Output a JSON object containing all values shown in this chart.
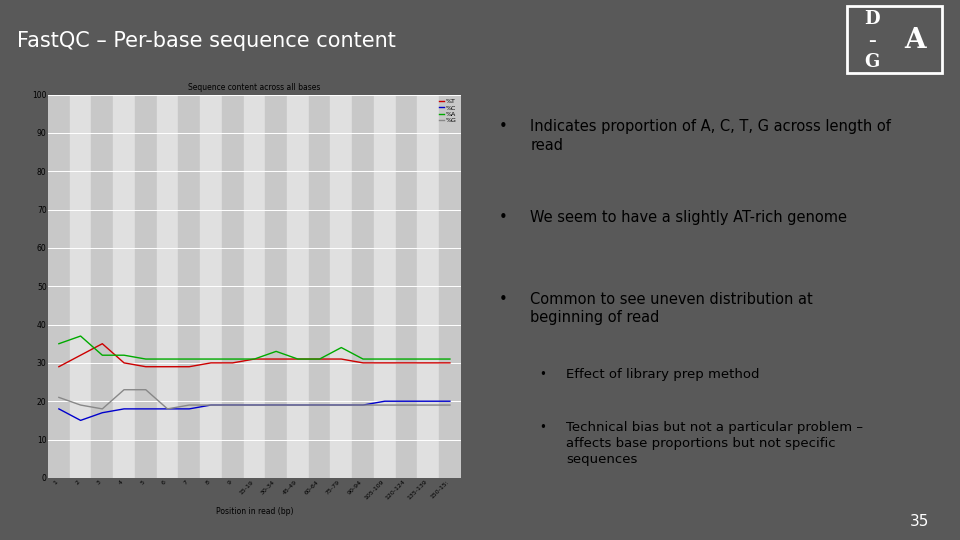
{
  "title": "FastQC – Per-base sequence content",
  "bg_color": "#595959",
  "slide_bg": "#ffffff",
  "header_color": "#595959",
  "header_text_color": "#ffffff",
  "footer_color": "#595959",
  "page_number": "35",
  "chart_title": "Sequence content across all bases",
  "x_labels": [
    "1",
    "2",
    "3",
    "4",
    "5",
    "6",
    "7",
    "8",
    "9",
    "15-19",
    "30-34",
    "45-49",
    "60-64",
    "75-79",
    "90-94",
    "105-109",
    "120-124",
    "135-139",
    "150-15:"
  ],
  "x_label": "Position in read (bp)",
  "ylim": [
    0,
    100
  ],
  "yticks": [
    0,
    10,
    20,
    30,
    40,
    50,
    60,
    70,
    80,
    90,
    100
  ],
  "T_color": "#cc0000",
  "C_color": "#0000cc",
  "A_color": "#00aa00",
  "G_color": "#888888",
  "T_values": [
    29,
    32,
    35,
    30,
    29,
    29,
    29,
    30,
    30,
    31,
    31,
    31,
    31,
    31,
    30,
    30,
    30,
    30,
    30
  ],
  "C_values": [
    18,
    15,
    17,
    18,
    18,
    18,
    18,
    19,
    19,
    19,
    19,
    19,
    19,
    19,
    19,
    20,
    20,
    20,
    20
  ],
  "A_values": [
    35,
    37,
    32,
    32,
    31,
    31,
    31,
    31,
    31,
    31,
    33,
    31,
    31,
    34,
    31,
    31,
    31,
    31,
    31
  ],
  "G_values": [
    21,
    19,
    18,
    23,
    23,
    18,
    19,
    19,
    19,
    19,
    19,
    19,
    19,
    19,
    19,
    19,
    19,
    19,
    19
  ],
  "main_bullets": [
    "Indicates proportion of A, C, T, G across length of\nread",
    "We seem to have a slightly AT-rich genome",
    "Common to see uneven distribution at\nbeginning of read"
  ],
  "sub_bullets": [
    "Effect of library prep method",
    "Technical bias but not a particular problem –\naffects base proportions but not specific\nsequences"
  ],
  "logo_box_color": "#555555",
  "logo_border_color": "#cccccc"
}
